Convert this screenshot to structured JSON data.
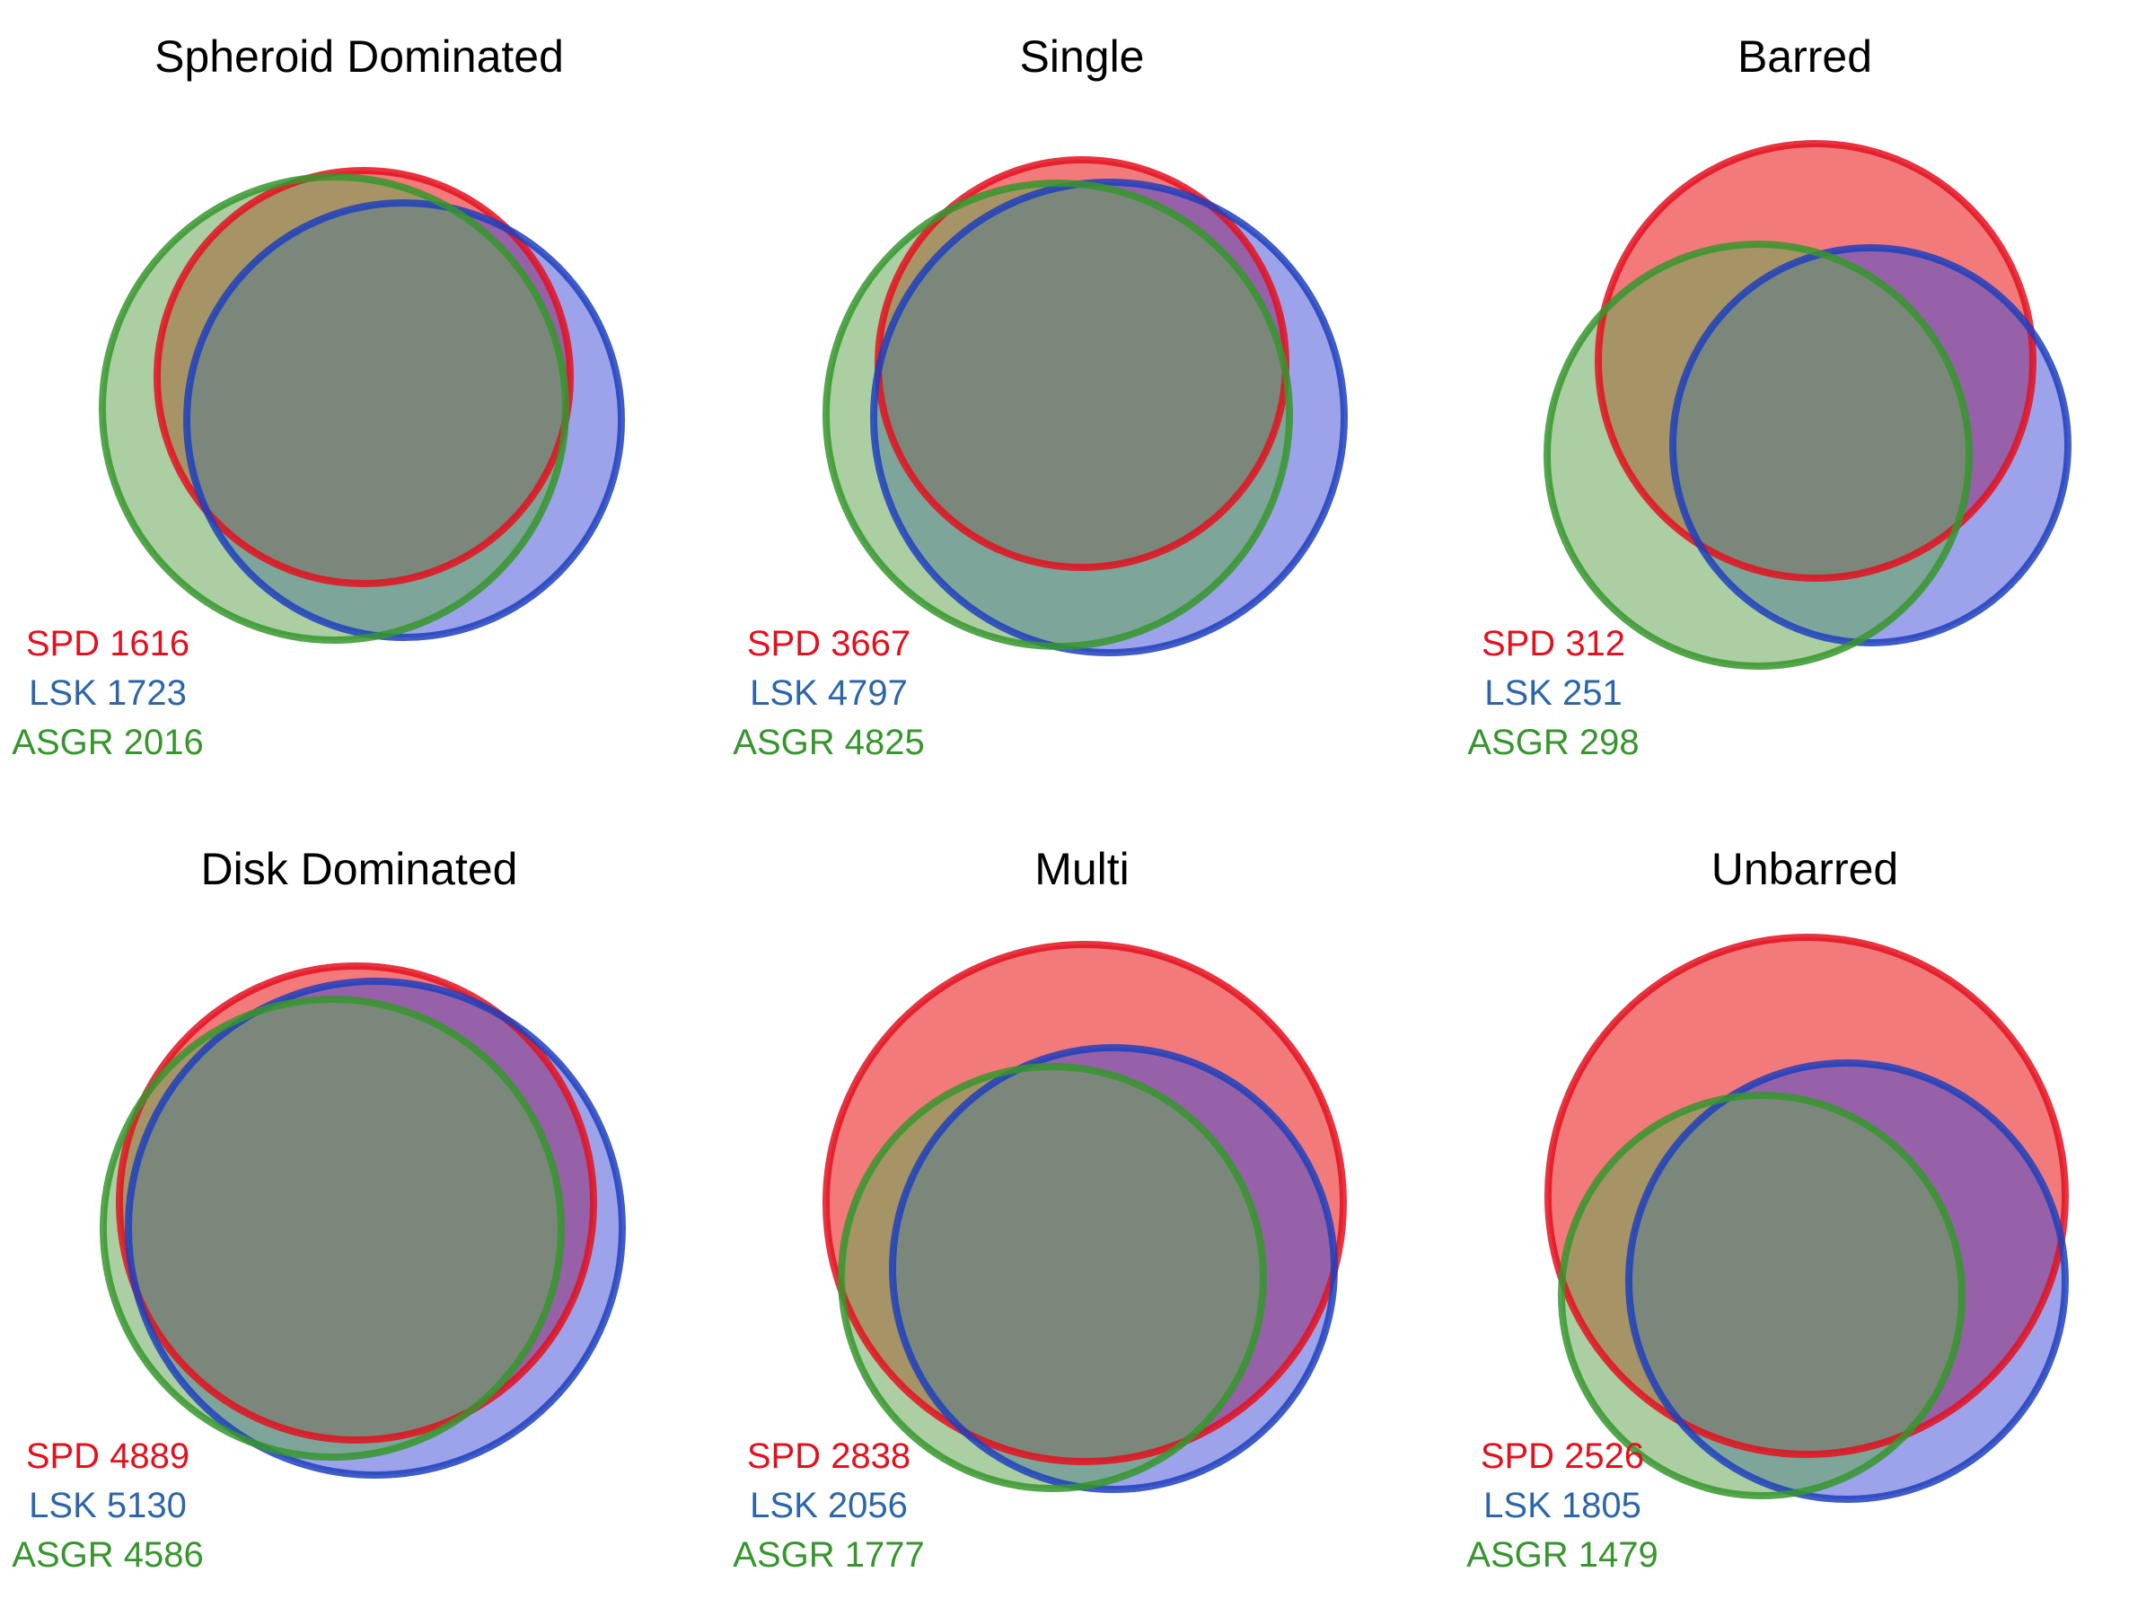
{
  "colors": {
    "SPD": "#e3101e",
    "LSK": "#2d66a8",
    "ASGR": "#36962d",
    "SPD_stroke": "#e3101e",
    "LSK_stroke": "#1f3fbd",
    "ASGR_stroke": "#36962d",
    "SPD_fill": "#ee3b3b",
    "LSK_fill": "#3a48d6",
    "ASGR_fill": "#66a855"
  },
  "panels": [
    {
      "title": "Spheroid Dominated",
      "counts": [
        {
          "set": "SPD",
          "label": "SPD",
          "value": "1616"
        },
        {
          "set": "LSK",
          "label": "LSK",
          "value": "1723"
        },
        {
          "set": "ASGR",
          "label": "ASGR",
          "value": "2016"
        }
      ]
    },
    {
      "title": "Single",
      "counts": [
        {
          "set": "SPD",
          "label": "SPD",
          "value": "3667"
        },
        {
          "set": "LSK",
          "label": "LSK",
          "value": "4797"
        },
        {
          "set": "ASGR",
          "label": "ASGR",
          "value": "4825"
        }
      ]
    },
    {
      "title": "Barred",
      "counts": [
        {
          "set": "SPD",
          "label": "SPD",
          "value": "312"
        },
        {
          "set": "LSK",
          "label": "LSK",
          "value": "251"
        },
        {
          "set": "ASGR",
          "label": "ASGR",
          "value": "298"
        }
      ]
    },
    {
      "title": "Disk Dominated",
      "counts": [
        {
          "set": "SPD",
          "label": "SPD",
          "value": "4889"
        },
        {
          "set": "LSK",
          "label": "LSK",
          "value": "5130"
        },
        {
          "set": "ASGR",
          "label": "ASGR",
          "value": "4586"
        }
      ]
    },
    {
      "title": "Multi",
      "counts": [
        {
          "set": "SPD",
          "label": "SPD",
          "value": "2838"
        },
        {
          "set": "LSK",
          "label": "LSK",
          "value": "2056"
        },
        {
          "set": "ASGR",
          "label": "ASGR",
          "value": "1777"
        }
      ]
    },
    {
      "title": "Unbarred",
      "counts": [
        {
          "set": "SPD",
          "label": "SPD",
          "value": "2526"
        },
        {
          "set": "LSK",
          "label": "LSK",
          "value": "1805"
        },
        {
          "set": "ASGR",
          "label": "ASGR",
          "value": "1479"
        }
      ]
    }
  ]
}
